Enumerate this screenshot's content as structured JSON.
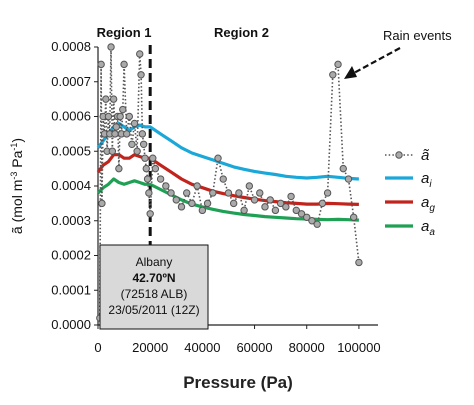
{
  "chart_data": {
    "type": "line",
    "xlabel": "Pressure (Pa)",
    "ylabel_main": "ã (mol m",
    "ylabel_exp1": "-3",
    "ylabel_mid": " Pa",
    "ylabel_exp2": "-1",
    "ylabel_end": ")",
    "xlim": [
      0,
      110000
    ],
    "ylim": [
      0,
      0.0008
    ],
    "x_ticks": [
      0,
      20000,
      40000,
      60000,
      80000,
      100000
    ],
    "x_tick_labels": [
      "0",
      "20000",
      "40000",
      "60000",
      "80000",
      "100000"
    ],
    "y_ticks": [
      0,
      0.0001,
      0.0002,
      0.0003,
      0.0004,
      0.0005,
      0.0006,
      0.0007,
      0.0008
    ],
    "y_tick_labels": [
      "0.0000",
      "0.0001",
      "0.0002",
      "0.0003",
      "0.0004",
      "0.0005",
      "0.0006",
      "0.0007",
      "0.0008"
    ],
    "region_boundary_x": 20000,
    "regions": [
      {
        "label": "Region 1",
        "x": 10000
      },
      {
        "label": "Region 2",
        "x": 55000
      }
    ],
    "annotation": {
      "text": "Rain events",
      "arrow_to": [
        91000,
        0.000725
      ]
    },
    "station_box": {
      "line1": "Albany",
      "line2": "42.70ºN",
      "line3": "(72518 ALB)",
      "line4": "23/05/2011 (12Z)"
    },
    "series": [
      {
        "key": "a_tilde",
        "legend_main": "ã",
        "legend_sub": "",
        "color": "#555555",
        "marker_fill": "#aaaaaa",
        "style": "dotted-markers",
        "x": [
          700,
          1200,
          1500,
          2000,
          2500,
          3000,
          3500,
          4000,
          4500,
          5000,
          5500,
          6000,
          6500,
          7000,
          7500,
          8000,
          8500,
          9000,
          9500,
          10000,
          11000,
          12000,
          13000,
          14000,
          15000,
          16000,
          16500,
          17000,
          17500,
          18000,
          18500,
          19000,
          19500,
          20000,
          21000,
          22000,
          24000,
          26000,
          28000,
          30000,
          32000,
          34000,
          36000,
          38000,
          40000,
          42000,
          44000,
          46000,
          48000,
          50000,
          52000,
          54000,
          56000,
          58000,
          60000,
          62000,
          64000,
          66000,
          68000,
          70000,
          72000,
          74000,
          76000,
          78000,
          80000,
          82000,
          84000,
          86000,
          88000,
          90000,
          92000,
          94000,
          96000,
          98000,
          100000
        ],
        "y": [
          2e-05,
          0.00075,
          0.00035,
          0.0006,
          0.00055,
          0.00065,
          0.0005,
          0.0006,
          0.00055,
          0.0008,
          0.0005,
          0.00065,
          0.00055,
          0.00057,
          0.0006,
          0.00045,
          0.0006,
          0.00055,
          0.00062,
          0.00075,
          0.00055,
          0.0006,
          0.00052,
          0.00058,
          0.0005,
          0.00078,
          0.00072,
          0.00055,
          0.00052,
          0.00048,
          0.00045,
          0.00042,
          0.00038,
          0.00032,
          0.00048,
          0.00045,
          0.00042,
          0.0004,
          0.00038,
          0.00036,
          0.00034,
          0.00038,
          0.00035,
          0.0004,
          0.00033,
          0.00035,
          0.00038,
          0.00048,
          0.00042,
          0.00038,
          0.00035,
          0.00038,
          0.00033,
          0.0004,
          0.00036,
          0.00038,
          0.00034,
          0.00036,
          0.00033,
          0.00035,
          0.00034,
          0.00037,
          0.00033,
          0.00032,
          0.00031,
          0.0003,
          0.00029,
          0.00035,
          0.00038,
          0.00072,
          0.00075,
          0.00045,
          0.00042,
          0.00031,
          0.00018
        ]
      },
      {
        "key": "a_i",
        "legend_main": "a",
        "legend_sub": "i",
        "color": "#1ba8d9",
        "style": "solid",
        "x": [
          0,
          2000,
          4000,
          6000,
          8000,
          10000,
          12000,
          14000,
          16000,
          18000,
          20000,
          24000,
          28000,
          32000,
          36000,
          40000,
          44000,
          48000,
          52000,
          56000,
          60000,
          64000,
          68000,
          72000,
          76000,
          80000,
          84000,
          88000,
          92000,
          96000,
          100000
        ],
        "y": [
          0.00051,
          0.00053,
          0.00055,
          0.00057,
          0.00058,
          0.00057,
          0.00056,
          0.00057,
          0.000575,
          0.00057,
          0.00057,
          0.00055,
          0.00053,
          0.00051,
          0.000495,
          0.000485,
          0.000475,
          0.000465,
          0.000455,
          0.000448,
          0.000442,
          0.000437,
          0.000433,
          0.000428,
          0.000425,
          0.000423,
          0.000425,
          0.000428,
          0.000425,
          0.000422,
          0.00042
        ]
      },
      {
        "key": "a_g",
        "legend_main": "a",
        "legend_sub": "g",
        "color": "#c0241c",
        "style": "solid",
        "x": [
          0,
          2000,
          4000,
          6000,
          8000,
          10000,
          12000,
          14000,
          16000,
          18000,
          20000,
          24000,
          28000,
          32000,
          36000,
          40000,
          44000,
          48000,
          52000,
          56000,
          60000,
          64000,
          68000,
          72000,
          76000,
          80000,
          84000,
          88000,
          92000,
          96000,
          100000
        ],
        "y": [
          0.00044,
          0.00046,
          0.00047,
          0.00049,
          0.00049,
          0.00048,
          0.00048,
          0.00049,
          0.000485,
          0.00048,
          0.00048,
          0.00046,
          0.00044,
          0.00042,
          0.000405,
          0.000395,
          0.000385,
          0.000378,
          0.000372,
          0.000367,
          0.000362,
          0.000358,
          0.000355,
          0.000352,
          0.00035,
          0.000348,
          0.000348,
          0.00035,
          0.000349,
          0.000348,
          0.000347
        ]
      },
      {
        "key": "a_a",
        "legend_main": "a",
        "legend_sub": "a",
        "color": "#1fa055",
        "style": "solid",
        "x": [
          0,
          2000,
          4000,
          6000,
          8000,
          10000,
          12000,
          14000,
          16000,
          18000,
          20000,
          24000,
          28000,
          32000,
          36000,
          40000,
          44000,
          48000,
          52000,
          56000,
          60000,
          64000,
          68000,
          72000,
          76000,
          80000,
          84000,
          88000,
          92000,
          96000,
          100000
        ],
        "y": [
          0.00038,
          0.000395,
          0.000405,
          0.00042,
          0.00041,
          0.000405,
          0.00041,
          0.000415,
          0.00041,
          0.000405,
          0.000405,
          0.00039,
          0.000375,
          0.00036,
          0.000348,
          0.00034,
          0.000333,
          0.000327,
          0.000322,
          0.000318,
          0.000315,
          0.000312,
          0.00031,
          0.000308,
          0.000306,
          0.000305,
          0.000304,
          0.000303,
          0.000304,
          0.000303,
          0.000302
        ]
      }
    ]
  }
}
